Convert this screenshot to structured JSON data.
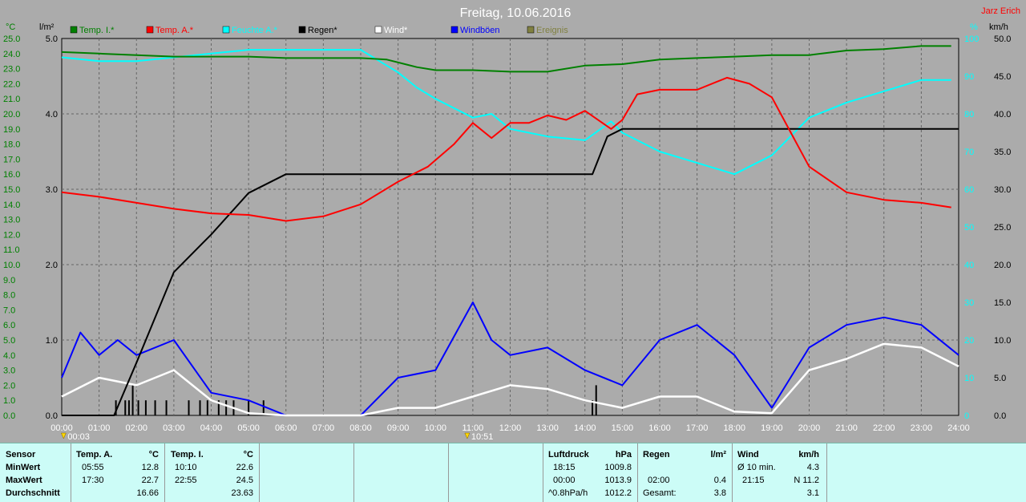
{
  "title": "Freitag, 10.06.2016",
  "author": "Jarz Erich",
  "unit_labels": {
    "left_outer": "°C",
    "left_inner": "l/m²",
    "right_inner": "%",
    "right_outer": "km/h"
  },
  "legend": [
    {
      "name": "Temp. I.*",
      "color": "#008000"
    },
    {
      "name": "Temp. A.*",
      "color": "#ff0000"
    },
    {
      "name": "Feuchte A.*",
      "color": "#00ffff"
    },
    {
      "name": "Regen*",
      "color": "#000000"
    },
    {
      "name": "Wind*",
      "color": "#ffffff"
    },
    {
      "name": "Windböen",
      "color": "#0000ff"
    },
    {
      "name": "Ereignis",
      "color": "#808040"
    }
  ],
  "events": [
    "00:03",
    "10:51"
  ],
  "chart_data": {
    "type": "line",
    "x_ticks": [
      "00:00",
      "01:00",
      "02:00",
      "03:00",
      "04:00",
      "05:00",
      "06:00",
      "07:00",
      "08:00",
      "09:00",
      "10:00",
      "11:00",
      "12:00",
      "13:00",
      "14:00",
      "15:00",
      "16:00",
      "17:00",
      "18:00",
      "19:00",
      "20:00",
      "21:00",
      "22:00",
      "23:00",
      "24:00"
    ],
    "axes": {
      "temp": {
        "range": [
          0,
          25
        ],
        "ticks": [
          "0.0",
          "1.0",
          "2.0",
          "3.0",
          "4.0",
          "5.0",
          "6.0",
          "7.0",
          "8.0",
          "9.0",
          "10.0",
          "11.0",
          "12.0",
          "13.0",
          "14.0",
          "15.0",
          "16.0",
          "17.0",
          "18.0",
          "19.0",
          "20.0",
          "21.0",
          "22.0",
          "23.0",
          "24.0",
          "25.0"
        ]
      },
      "rain": {
        "range": [
          0,
          5
        ],
        "ticks": [
          "0.0",
          "1.0",
          "2.0",
          "3.0",
          "4.0",
          "5.0"
        ]
      },
      "humidity": {
        "range": [
          0,
          100
        ],
        "ticks": [
          "0",
          "10",
          "20",
          "30",
          "40",
          "50",
          "60",
          "70",
          "80",
          "90",
          "100"
        ]
      },
      "wind": {
        "range": [
          0,
          50
        ],
        "ticks": [
          "0.0",
          "5.0",
          "10.0",
          "15.0",
          "20.0",
          "25.0",
          "30.0",
          "35.0",
          "40.0",
          "45.0",
          "50.0"
        ]
      }
    },
    "series": [
      {
        "name": "Temp. I.*",
        "axis": "temp",
        "color": "#008000",
        "points": [
          [
            0,
            24.1
          ],
          [
            1,
            24.0
          ],
          [
            2,
            23.9
          ],
          [
            3,
            23.8
          ],
          [
            4,
            23.8
          ],
          [
            5,
            23.8
          ],
          [
            6,
            23.7
          ],
          [
            7,
            23.7
          ],
          [
            8,
            23.7
          ],
          [
            8.7,
            23.6
          ],
          [
            9.5,
            23.1
          ],
          [
            10,
            22.9
          ],
          [
            11,
            22.9
          ],
          [
            12,
            22.8
          ],
          [
            13,
            22.8
          ],
          [
            14,
            23.2
          ],
          [
            15,
            23.3
          ],
          [
            16,
            23.6
          ],
          [
            17,
            23.7
          ],
          [
            18,
            23.8
          ],
          [
            19,
            23.9
          ],
          [
            20,
            23.9
          ],
          [
            21,
            24.2
          ],
          [
            22,
            24.3
          ],
          [
            23,
            24.5
          ],
          [
            23.8,
            24.5
          ]
        ]
      },
      {
        "name": "Temp. A.*",
        "axis": "temp",
        "color": "#ff0000",
        "points": [
          [
            0,
            14.8
          ],
          [
            1,
            14.5
          ],
          [
            2,
            14.1
          ],
          [
            3,
            13.7
          ],
          [
            4,
            13.4
          ],
          [
            5,
            13.3
          ],
          [
            6,
            12.9
          ],
          [
            7,
            13.2
          ],
          [
            8,
            14.0
          ],
          [
            9,
            15.5
          ],
          [
            9.8,
            16.5
          ],
          [
            10.5,
            18.0
          ],
          [
            11,
            19.4
          ],
          [
            11.5,
            18.4
          ],
          [
            12,
            19.4
          ],
          [
            12.5,
            19.4
          ],
          [
            13,
            19.9
          ],
          [
            13.5,
            19.6
          ],
          [
            14,
            20.2
          ],
          [
            14.7,
            19.0
          ],
          [
            15,
            19.6
          ],
          [
            15.4,
            21.3
          ],
          [
            16,
            21.6
          ],
          [
            17,
            21.6
          ],
          [
            17.8,
            22.4
          ],
          [
            18.4,
            22.0
          ],
          [
            19,
            21.1
          ],
          [
            19.5,
            18.8
          ],
          [
            20,
            16.5
          ],
          [
            21,
            14.8
          ],
          [
            22,
            14.3
          ],
          [
            23,
            14.1
          ],
          [
            23.8,
            13.8
          ]
        ]
      },
      {
        "name": "Feuchte A.*",
        "axis": "humidity",
        "color": "#00ffff",
        "points": [
          [
            0,
            95
          ],
          [
            1,
            94
          ],
          [
            2,
            94
          ],
          [
            3,
            95
          ],
          [
            4,
            96
          ],
          [
            5,
            97
          ],
          [
            6,
            97
          ],
          [
            7,
            97
          ],
          [
            8,
            97
          ],
          [
            8.5,
            94
          ],
          [
            9,
            91
          ],
          [
            9.5,
            87
          ],
          [
            10,
            84
          ],
          [
            11,
            79
          ],
          [
            11.5,
            80
          ],
          [
            12,
            76
          ],
          [
            13,
            74
          ],
          [
            14,
            73
          ],
          [
            14.7,
            78
          ],
          [
            15,
            75
          ],
          [
            16,
            70
          ],
          [
            17,
            67
          ],
          [
            18,
            64
          ],
          [
            19,
            69
          ],
          [
            20,
            79
          ],
          [
            21,
            83
          ],
          [
            22,
            86
          ],
          [
            23,
            89
          ],
          [
            23.8,
            89
          ]
        ]
      },
      {
        "name": "Regen*",
        "axis": "rain",
        "color": "#000000",
        "points": [
          [
            0,
            0
          ],
          [
            1.4,
            0
          ],
          [
            2,
            0.7
          ],
          [
            3,
            1.9
          ],
          [
            4,
            2.4
          ],
          [
            5,
            2.95
          ],
          [
            6,
            3.2
          ],
          [
            8,
            3.2
          ],
          [
            9,
            3.2
          ],
          [
            10,
            3.2
          ],
          [
            11,
            3.2
          ],
          [
            12,
            3.2
          ],
          [
            13,
            3.2
          ],
          [
            14.2,
            3.2
          ],
          [
            14.6,
            3.7
          ],
          [
            15,
            3.8
          ],
          [
            24,
            3.8
          ]
        ]
      },
      {
        "name": "Wind*",
        "axis": "wind",
        "color": "#ffffff",
        "points": [
          [
            0,
            2.5
          ],
          [
            1,
            5
          ],
          [
            2,
            4
          ],
          [
            3,
            6
          ],
          [
            4,
            2
          ],
          [
            5,
            0.3
          ],
          [
            6,
            0
          ],
          [
            8,
            0
          ],
          [
            9,
            1
          ],
          [
            10,
            1
          ],
          [
            11,
            2.5
          ],
          [
            12,
            4
          ],
          [
            13,
            3.5
          ],
          [
            14,
            2
          ],
          [
            15,
            1
          ],
          [
            16,
            2.5
          ],
          [
            17,
            2.5
          ],
          [
            18,
            0.5
          ],
          [
            19,
            0.3
          ],
          [
            20,
            6
          ],
          [
            21,
            7.5
          ],
          [
            22,
            9.5
          ],
          [
            23,
            9
          ],
          [
            24,
            6.5
          ]
        ]
      },
      {
        "name": "Windböen",
        "axis": "wind",
        "color": "#0000ff",
        "points": [
          [
            0,
            5
          ],
          [
            0.5,
            11
          ],
          [
            1,
            8
          ],
          [
            1.5,
            10
          ],
          [
            2,
            8
          ],
          [
            3,
            10
          ],
          [
            4,
            3
          ],
          [
            5,
            2
          ],
          [
            6,
            0
          ],
          [
            8,
            0
          ],
          [
            9,
            5
          ],
          [
            10,
            6
          ],
          [
            11,
            15
          ],
          [
            11.5,
            10
          ],
          [
            12,
            8
          ],
          [
            13,
            9
          ],
          [
            14,
            6
          ],
          [
            15,
            4
          ],
          [
            16,
            10
          ],
          [
            17,
            12
          ],
          [
            18,
            8
          ],
          [
            19,
            1
          ],
          [
            20,
            9
          ],
          [
            21,
            12
          ],
          [
            22,
            13
          ],
          [
            23,
            12
          ],
          [
            24,
            8
          ]
        ]
      }
    ],
    "rain_bars": [
      [
        1.45,
        0.2
      ],
      [
        1.7,
        0.2
      ],
      [
        1.8,
        0.2
      ],
      [
        1.9,
        0.4
      ],
      [
        2.05,
        0.2
      ],
      [
        2.25,
        0.2
      ],
      [
        2.5,
        0.2
      ],
      [
        2.8,
        0.2
      ],
      [
        3.4,
        0.2
      ],
      [
        3.7,
        0.2
      ],
      [
        3.9,
        0.2
      ],
      [
        4.2,
        0.2
      ],
      [
        4.4,
        0.2
      ],
      [
        4.6,
        0.2
      ],
      [
        5.0,
        0.2
      ],
      [
        5.4,
        0.2
      ],
      [
        14.2,
        0.2
      ],
      [
        14.3,
        0.4
      ]
    ],
    "event_marks": [
      0.05,
      10.85
    ]
  },
  "table": {
    "sensor": {
      "header": "Sensor",
      "rows": [
        "MinWert",
        "MaxWert",
        "Durchschnitt"
      ]
    },
    "tempA": {
      "header": "Temp. A.",
      "unit": "°C",
      "times": [
        "05:55",
        "17:30",
        ""
      ],
      "values": [
        "12.8",
        "22.7",
        "16.66"
      ]
    },
    "tempI": {
      "header": "Temp. I.",
      "unit": "°C",
      "times": [
        "10:10",
        "22:55",
        ""
      ],
      "values": [
        "22.6",
        "24.5",
        "23.63"
      ]
    },
    "pressure": {
      "header": "Luftdruck",
      "unit": "hPa",
      "times": [
        "18:15",
        "00:00",
        "^0.8hPa/h"
      ],
      "values": [
        "1009.8",
        "1013.9",
        "1012.2"
      ]
    },
    "rain": {
      "header": "Regen",
      "unit": "l/m²",
      "times": [
        "",
        "02:00",
        "Gesamt:"
      ],
      "values": [
        "",
        "0.4",
        "3.8"
      ]
    },
    "wind": {
      "header": "Wind",
      "unit": "km/h",
      "times": [
        "Ø 10 min.",
        "21:15",
        ""
      ],
      "values": [
        "4.3",
        "N 11.2",
        "3.1"
      ]
    }
  }
}
